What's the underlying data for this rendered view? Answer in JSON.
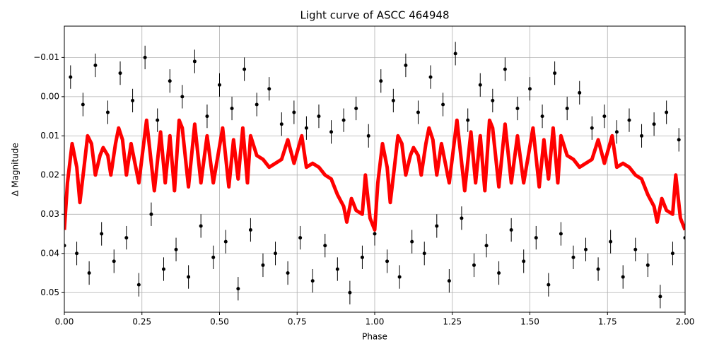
{
  "chart_data": {
    "type": "scatter",
    "title": "Light curve of ASCC 464948",
    "xlabel": "Phase",
    "ylabel": "Δ Magnitude",
    "xlim": [
      0,
      2
    ],
    "ylim": [
      -0.018,
      0.055
    ],
    "y_inverted": true,
    "grid": true,
    "xticks": [
      {
        "value": 0,
        "label": "0.00"
      },
      0.25,
      {
        "value": 0.5,
        "label": "0.50"
      },
      0.75,
      {
        "value": 1,
        "label": "1.00"
      },
      1.25,
      {
        "value": 1.5,
        "label": "1.50"
      },
      1.75,
      {
        "value": 2,
        "label": "2.00"
      }
    ],
    "yticks": [
      {
        "value": -0.01,
        "label": "−0.01"
      },
      {
        "value": 0,
        "label": "0.00"
      },
      0.01,
      0.02,
      0.03,
      0.04,
      0.05
    ],
    "series": [
      {
        "mode": "points",
        "color": "#000000",
        "error": 0.003,
        "x": [
          0,
          0.02,
          0.04,
          0.06,
          0.08,
          0.1,
          0.12,
          0.14,
          0.16,
          0.18,
          0.2,
          0.22,
          0.24,
          0.26,
          0.28,
          0.3,
          0.32,
          0.34,
          0.36,
          0.38,
          0.4,
          0.42,
          0.44,
          0.46,
          0.48,
          0.5,
          0.52,
          0.54,
          0.56,
          0.58,
          0.6,
          0.62,
          0.64,
          0.66,
          0.68,
          0.7,
          0.72,
          0.74,
          0.76,
          0.78,
          0.8,
          0.82,
          0.84,
          0.86,
          0.88,
          0.9,
          0.92,
          0.94,
          0.96,
          0.98,
          1,
          1.02,
          1.04,
          1.06,
          1.08,
          1.1,
          1.12,
          1.14,
          1.16,
          1.18,
          1.2,
          1.22,
          1.24,
          1.26,
          1.28,
          1.3,
          1.32,
          1.34,
          1.36,
          1.38,
          1.4,
          1.42,
          1.44,
          1.46,
          1.48,
          1.5,
          1.52,
          1.54,
          1.56,
          1.58,
          1.6,
          1.62,
          1.64,
          1.66,
          1.68,
          1.7,
          1.72,
          1.74,
          1.76,
          1.78,
          1.8,
          1.82,
          1.84,
          1.86,
          1.88,
          1.9,
          1.92,
          1.94,
          1.96,
          1.98,
          2
        ],
        "values": [
          0.038,
          -0.005,
          0.04,
          0.002,
          0.045,
          -0.008,
          0.035,
          0.004,
          0.042,
          -0.006,
          0.036,
          0.001,
          0.048,
          -0.01,
          0.03,
          0.006,
          0.044,
          -0.004,
          0.039,
          0.0,
          0.046,
          -0.009,
          0.033,
          0.005,
          0.041,
          -0.003,
          0.037,
          0.003,
          0.049,
          -0.007,
          0.034,
          0.002,
          0.043,
          -0.002,
          0.04,
          0.007,
          0.045,
          0.004,
          0.036,
          0.008,
          0.047,
          0.005,
          0.038,
          0.009,
          0.044,
          0.006,
          0.05,
          0.003,
          0.041,
          0.01,
          0.035,
          -0.004,
          0.042,
          0.001,
          0.046,
          -0.008,
          0.037,
          0.004,
          0.04,
          -0.005,
          0.033,
          0.002,
          0.047,
          -0.011,
          0.031,
          0.006,
          0.043,
          -0.003,
          0.038,
          0.001,
          0.045,
          -0.007,
          0.034,
          0.003,
          0.042,
          -0.002,
          0.036,
          0.005,
          0.048,
          -0.006,
          0.035,
          0.003,
          0.041,
          -0.001,
          0.039,
          0.008,
          0.044,
          0.005,
          0.037,
          0.009,
          0.046,
          0.006,
          0.039,
          0.01,
          0.043,
          0.007,
          0.051,
          0.004,
          0.04,
          0.011,
          0.036
        ]
      },
      {
        "mode": "line",
        "color": "#ff0000",
        "x": [
          0,
          0.01,
          0.025,
          0.04,
          0.05,
          0.065,
          0.075,
          0.0875,
          0.1,
          0.115,
          0.125,
          0.14,
          0.15,
          0.165,
          0.175,
          0.1875,
          0.2,
          0.215,
          0.24,
          0.265,
          0.29,
          0.31,
          0.325,
          0.34,
          0.355,
          0.37,
          0.38,
          0.4,
          0.42,
          0.44,
          0.46,
          0.48,
          0.51,
          0.53,
          0.545,
          0.56,
          0.575,
          0.59,
          0.6,
          0.62,
          0.64,
          0.66,
          0.68,
          0.7,
          0.72,
          0.74,
          0.765,
          0.78,
          0.8,
          0.82,
          0.84,
          0.86,
          0.88,
          0.9,
          0.91,
          0.925,
          0.94,
          0.96,
          0.97,
          0.985,
          1,
          1.01,
          1.025,
          1.04,
          1.05,
          1.065,
          1.075,
          1.0875,
          1.1,
          1.115,
          1.125,
          1.14,
          1.15,
          1.165,
          1.175,
          1.1875,
          1.2,
          1.215,
          1.24,
          1.265,
          1.29,
          1.31,
          1.325,
          1.34,
          1.355,
          1.37,
          1.38,
          1.4,
          1.42,
          1.44,
          1.46,
          1.48,
          1.51,
          1.53,
          1.545,
          1.56,
          1.575,
          1.59,
          1.6,
          1.62,
          1.64,
          1.66,
          1.68,
          1.7,
          1.72,
          1.74,
          1.765,
          1.78,
          1.8,
          1.82,
          1.84,
          1.86,
          1.88,
          1.9,
          1.91,
          1.925,
          1.94,
          1.96,
          1.97,
          1.985,
          2
        ],
        "values": [
          0.034,
          0.022,
          0.012,
          0.018,
          0.027,
          0.017,
          0.01,
          0.012,
          0.02,
          0.015,
          0.013,
          0.015,
          0.02,
          0.012,
          0.008,
          0.011,
          0.02,
          0.012,
          0.022,
          0.006,
          0.024,
          0.009,
          0.022,
          0.01,
          0.024,
          0.006,
          0.008,
          0.023,
          0.007,
          0.022,
          0.01,
          0.022,
          0.008,
          0.023,
          0.011,
          0.021,
          0.008,
          0.022,
          0.01,
          0.015,
          0.016,
          0.018,
          0.017,
          0.016,
          0.011,
          0.017,
          0.01,
          0.018,
          0.017,
          0.018,
          0.02,
          0.021,
          0.025,
          0.028,
          0.032,
          0.026,
          0.029,
          0.03,
          0.02,
          0.031,
          0.034,
          0.022,
          0.012,
          0.018,
          0.027,
          0.017,
          0.01,
          0.012,
          0.02,
          0.015,
          0.013,
          0.015,
          0.02,
          0.012,
          0.008,
          0.011,
          0.02,
          0.012,
          0.022,
          0.006,
          0.024,
          0.009,
          0.022,
          0.01,
          0.024,
          0.006,
          0.008,
          0.023,
          0.007,
          0.022,
          0.01,
          0.022,
          0.008,
          0.023,
          0.011,
          0.021,
          0.008,
          0.022,
          0.01,
          0.015,
          0.016,
          0.018,
          0.017,
          0.016,
          0.011,
          0.017,
          0.01,
          0.018,
          0.017,
          0.018,
          0.02,
          0.021,
          0.025,
          0.028,
          0.032,
          0.026,
          0.029,
          0.03,
          0.02,
          0.031,
          0.034
        ]
      }
    ]
  }
}
